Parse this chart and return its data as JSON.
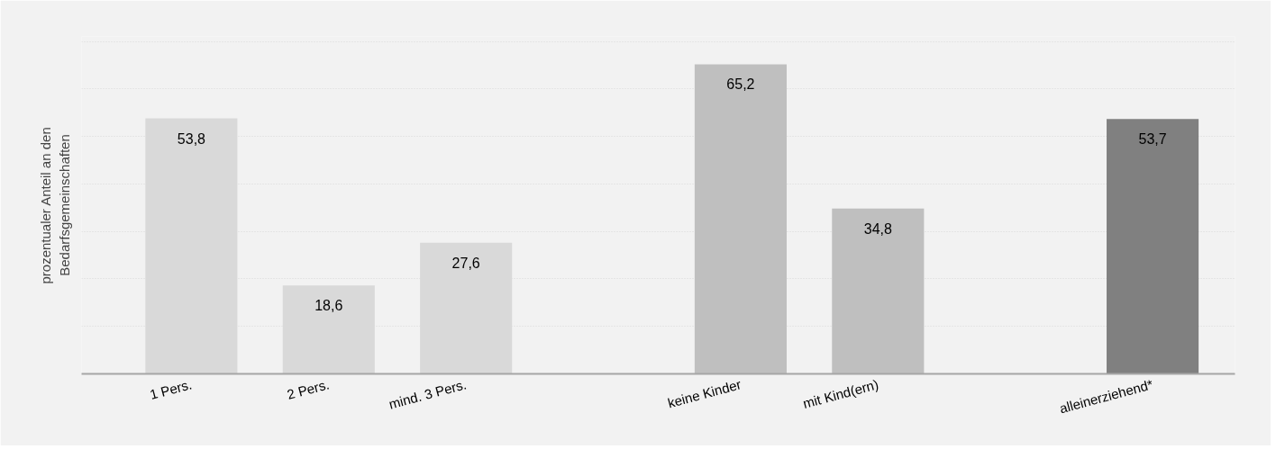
{
  "chart_data": {
    "type": "bar",
    "ylabel": "prozentualer Anteil an den\nBedarfsgemeinschaften",
    "categories": [
      "1 Pers.",
      "2 Pers.",
      "mind. 3 Pers.",
      null,
      "keine Kinder",
      "mit Kind(ern)",
      null,
      "alleinerziehend*"
    ],
    "values": [
      53.8,
      18.6,
      27.6,
      null,
      65.2,
      34.8,
      null,
      53.7
    ],
    "value_labels": [
      "53,8",
      "18,6",
      "27,6",
      null,
      "65,2",
      "34,8",
      null,
      "53,7"
    ],
    "colors": [
      "#d9d9d9",
      "#d9d9d9",
      "#d9d9d9",
      null,
      "#bfbfbf",
      "#bfbfbf",
      null,
      "#808080"
    ],
    "grid": "y",
    "tick_labels": "x"
  }
}
